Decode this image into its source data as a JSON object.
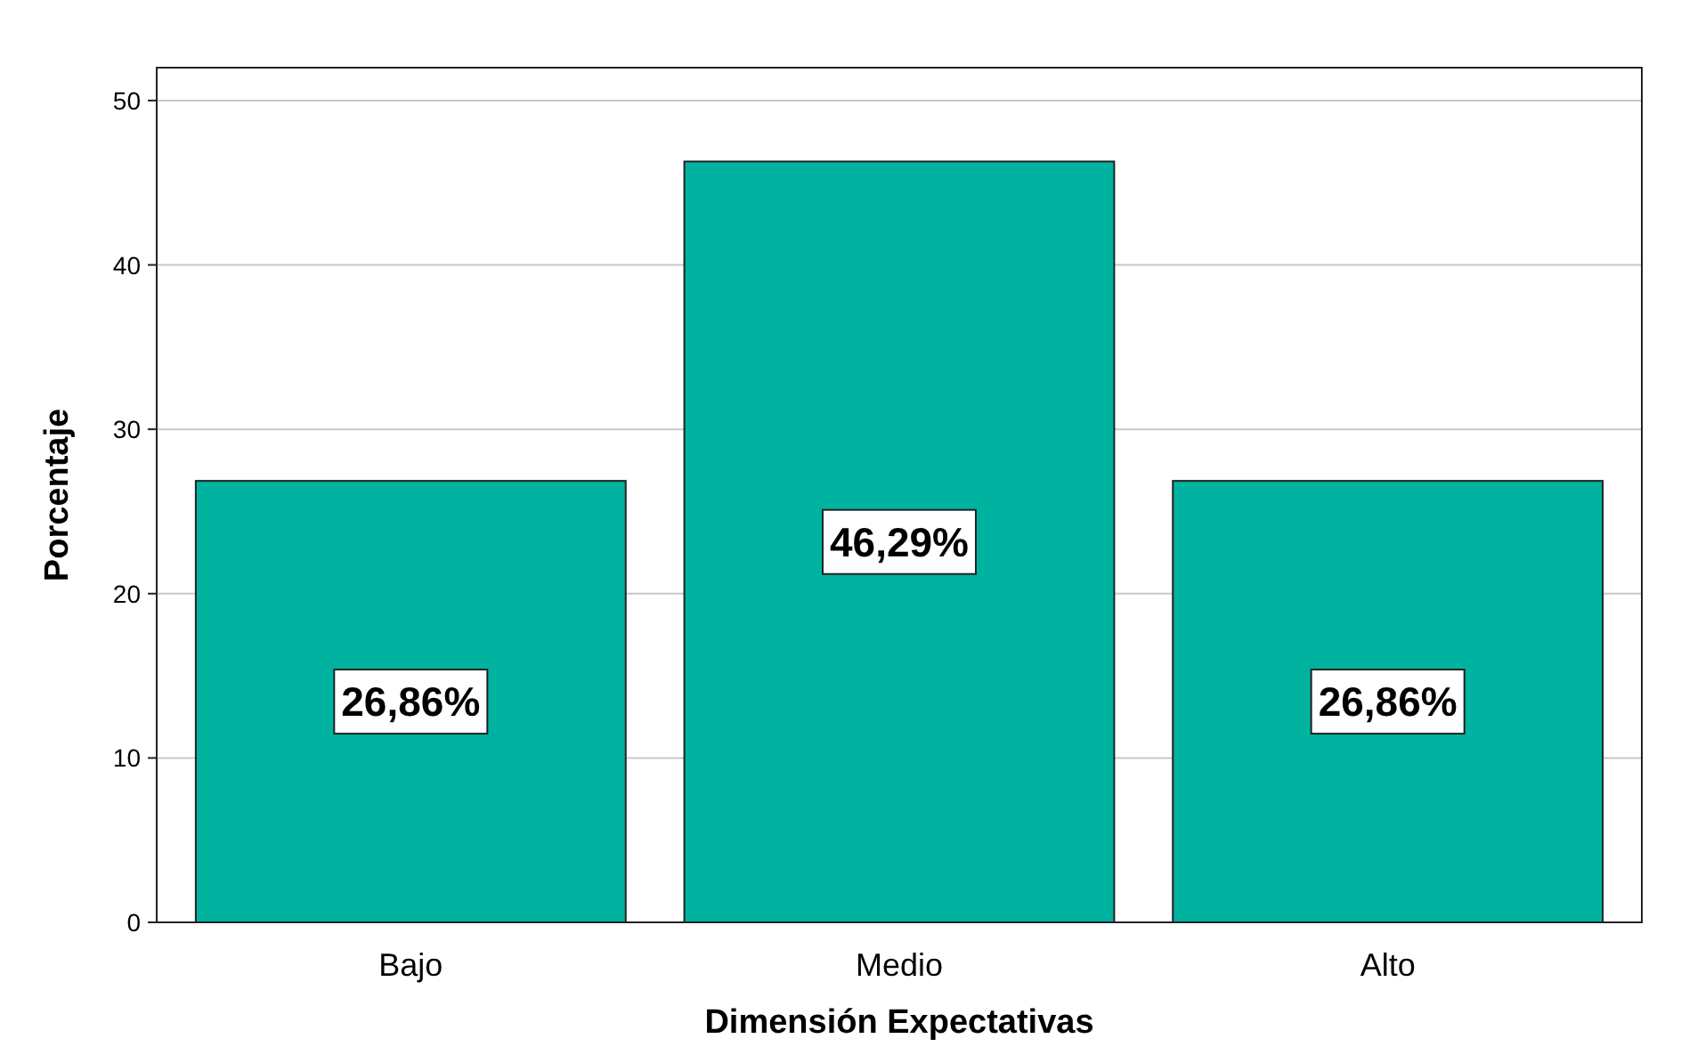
{
  "chart_data": {
    "type": "bar",
    "xlabel": "Dimensión Expectativas",
    "ylabel": "Porcentaje",
    "categories": [
      "Bajo",
      "Medio",
      "Alto"
    ],
    "values": [
      26.86,
      46.29,
      26.86
    ],
    "value_labels": [
      "26,86%",
      "46,29%",
      "26,86%"
    ],
    "color": "#00b2a0",
    "ylim": [
      0,
      52
    ],
    "yticks": [
      0,
      10,
      20,
      30,
      40,
      50
    ],
    "grid": "y"
  }
}
